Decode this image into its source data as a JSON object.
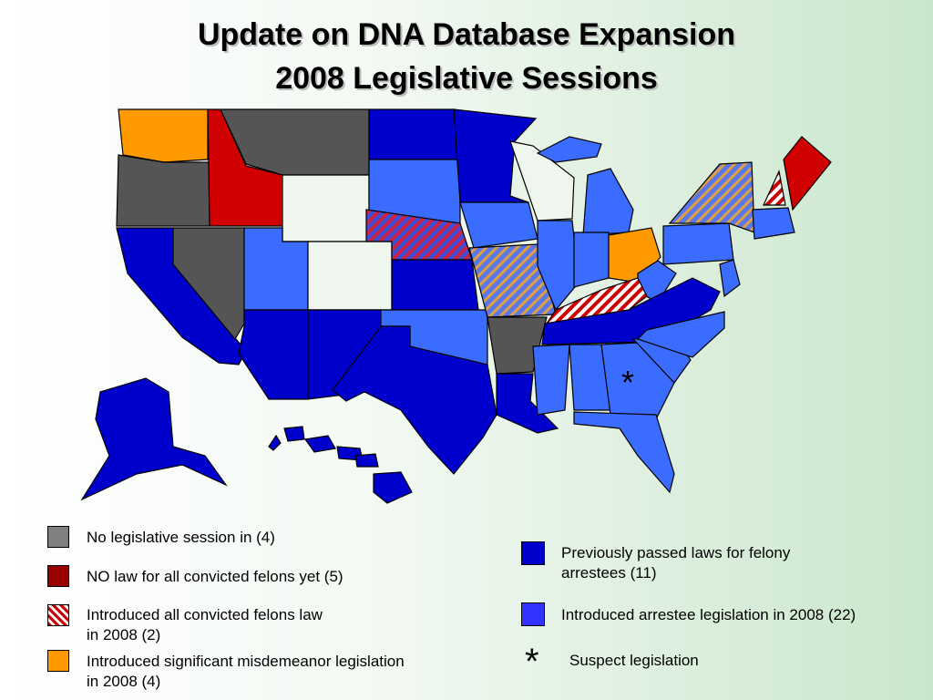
{
  "title": {
    "line1": "Update on DNA Database Expansion",
    "line2": "2008 Legislative Sessions"
  },
  "legend": {
    "left": [
      {
        "label": "No legislative session in  (4)"
      },
      {
        "label": "NO law for all convicted felons yet (5)"
      },
      {
        "label": "Introduced all convicted felons law",
        "label2": "in 2008 (2)"
      },
      {
        "label": "Introduced significant misdemeanor legislation",
        "label2": "in 2008 (4)"
      }
    ],
    "right": [
      {
        "label": "Previously passed laws for felony",
        "label2": "arrestees (11)"
      },
      {
        "label": "Introduced arrestee legislation in 2008 (22)"
      },
      {
        "symbol": "*",
        "label": "Suspect legislation"
      }
    ]
  }
}
